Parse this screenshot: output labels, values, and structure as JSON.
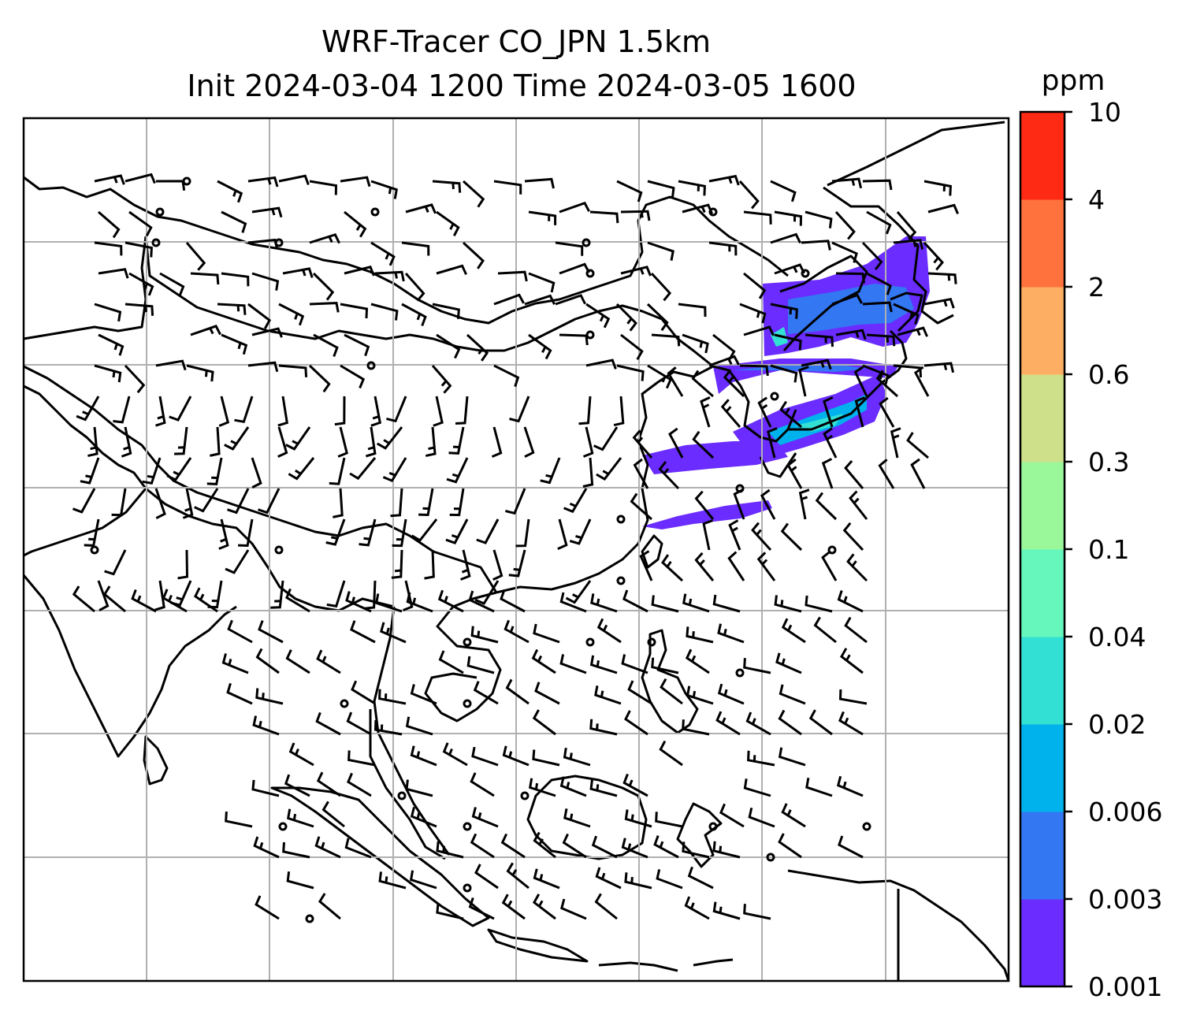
{
  "title": {
    "line1": "WRF-Tracer CO_JPN 1.5km",
    "line2": "Init 2024-03-04 1200 Time 2024-03-05 1600"
  },
  "map": {
    "type": "map",
    "layers": [
      "coastlines",
      "country-borders",
      "lat-lon-gridlines",
      "wind-barbs",
      "tracer-concentration-fill"
    ],
    "colors": {
      "coastline": "#000000",
      "gridline": "#b0b0b0",
      "barb": "#000000"
    }
  },
  "colorbar": {
    "unit": "ppm",
    "levels": [
      "0.001",
      "0.003",
      "0.006",
      "0.02",
      "0.04",
      "0.1",
      "0.3",
      "0.6",
      "2",
      "4",
      "10"
    ],
    "colors": [
      "#6a2cff",
      "#3377f2",
      "#00b2ec",
      "#33e0d4",
      "#66f7bd",
      "#9af89b",
      "#cfe08a",
      "#feae62",
      "#ff713d",
      "#ff2a14"
    ]
  }
}
